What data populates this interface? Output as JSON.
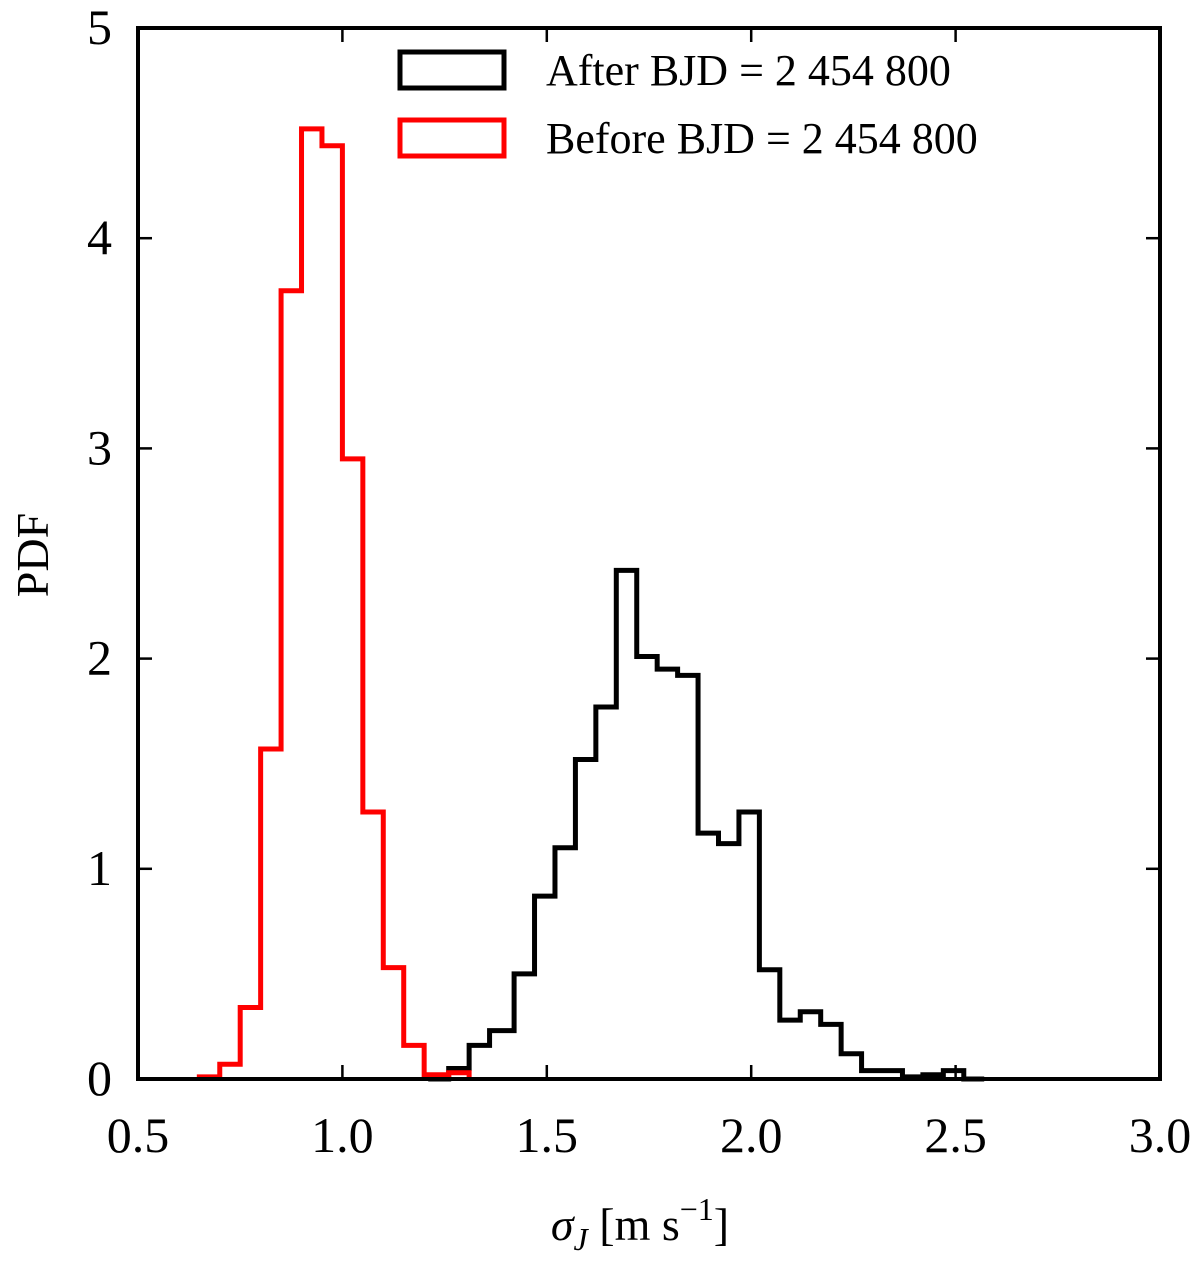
{
  "chart_data": {
    "type": "histogram",
    "xlabel": "σ_J [m s⁻¹]",
    "ylabel": "PDF",
    "xlim": [
      0.5,
      3.0
    ],
    "ylim": [
      0,
      5
    ],
    "xticks": [
      "0.5",
      "1.0",
      "1.5",
      "2.0",
      "2.5",
      "3.0"
    ],
    "yticks": [
      "0",
      "1",
      "2",
      "3",
      "4",
      "5"
    ],
    "grid": false,
    "legend_position": "top-right",
    "series": [
      {
        "name": "After BJD = 2 454 800",
        "color": "#000000",
        "bin_edges": [
          1.21,
          1.26,
          1.31,
          1.36,
          1.42,
          1.47,
          1.52,
          1.57,
          1.62,
          1.67,
          1.72,
          1.77,
          1.82,
          1.87,
          1.92,
          1.97,
          2.02,
          2.07,
          2.12,
          2.17,
          2.22,
          2.27,
          2.32,
          2.37,
          2.42,
          2.47,
          2.52,
          2.57
        ],
        "values": [
          0.0,
          0.05,
          0.16,
          0.23,
          0.5,
          0.87,
          1.1,
          1.52,
          1.77,
          2.42,
          2.01,
          1.95,
          1.92,
          1.17,
          1.12,
          1.27,
          0.52,
          0.28,
          0.32,
          0.26,
          0.12,
          0.04,
          0.04,
          0.01,
          0.02,
          0.04,
          0.0
        ]
      },
      {
        "name": "Before BJD = 2 454 800",
        "color": "#ff0000",
        "bin_edges": [
          0.65,
          0.7,
          0.75,
          0.8,
          0.85,
          0.9,
          0.95,
          1.0,
          1.05,
          1.1,
          1.15,
          1.2,
          1.26,
          1.31
        ],
        "values": [
          0.01,
          0.07,
          0.34,
          1.57,
          3.75,
          4.52,
          4.44,
          2.95,
          1.27,
          0.53,
          0.16,
          0.02,
          0.03
        ]
      }
    ]
  }
}
